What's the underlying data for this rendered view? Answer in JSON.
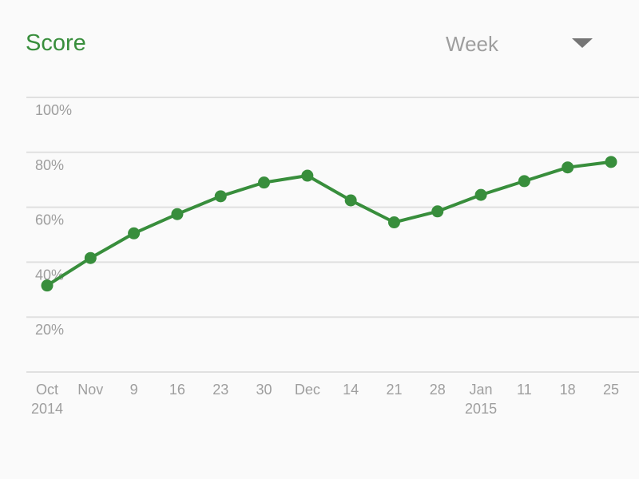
{
  "header": {
    "title": "Score",
    "period_select": {
      "selected": "Week",
      "icon": "dropdown-arrow-icon"
    }
  },
  "colors": {
    "accent": "#388e3c",
    "grid": "#e0e0e0",
    "axis_text": "#9e9e9e"
  },
  "chart_data": {
    "type": "line",
    "title": "",
    "xlabel": "",
    "ylabel": "",
    "ylim": [
      0,
      100
    ],
    "y_ticks": [
      {
        "value": 100,
        "label": "100%"
      },
      {
        "value": 80,
        "label": "80%"
      },
      {
        "value": 60,
        "label": "60%"
      },
      {
        "value": 40,
        "label": "40%"
      },
      {
        "value": 20,
        "label": "20%"
      },
      {
        "value": 0,
        "label": ""
      }
    ],
    "grid": true,
    "legend": "none",
    "x": [
      "Oct 2014",
      "Nov",
      "9",
      "16",
      "23",
      "30",
      "Dec",
      "14",
      "21",
      "28",
      "Jan 2015",
      "11",
      "18",
      "25"
    ],
    "x_tick_labels": [
      [
        "Oct",
        "2014"
      ],
      [
        "Nov"
      ],
      [
        "9"
      ],
      [
        "16"
      ],
      [
        "23"
      ],
      [
        "30"
      ],
      [
        "Dec"
      ],
      [
        "14"
      ],
      [
        "21"
      ],
      [
        "28"
      ],
      [
        "Jan",
        "2015"
      ],
      [
        "11"
      ],
      [
        "18"
      ],
      [
        "25"
      ]
    ],
    "series": [
      {
        "values": [
          31.5,
          41.5,
          50.5,
          57.5,
          64,
          69,
          71.5,
          62.5,
          54.5,
          58.5,
          64.5,
          69.5,
          74.5,
          76.5
        ]
      }
    ]
  }
}
